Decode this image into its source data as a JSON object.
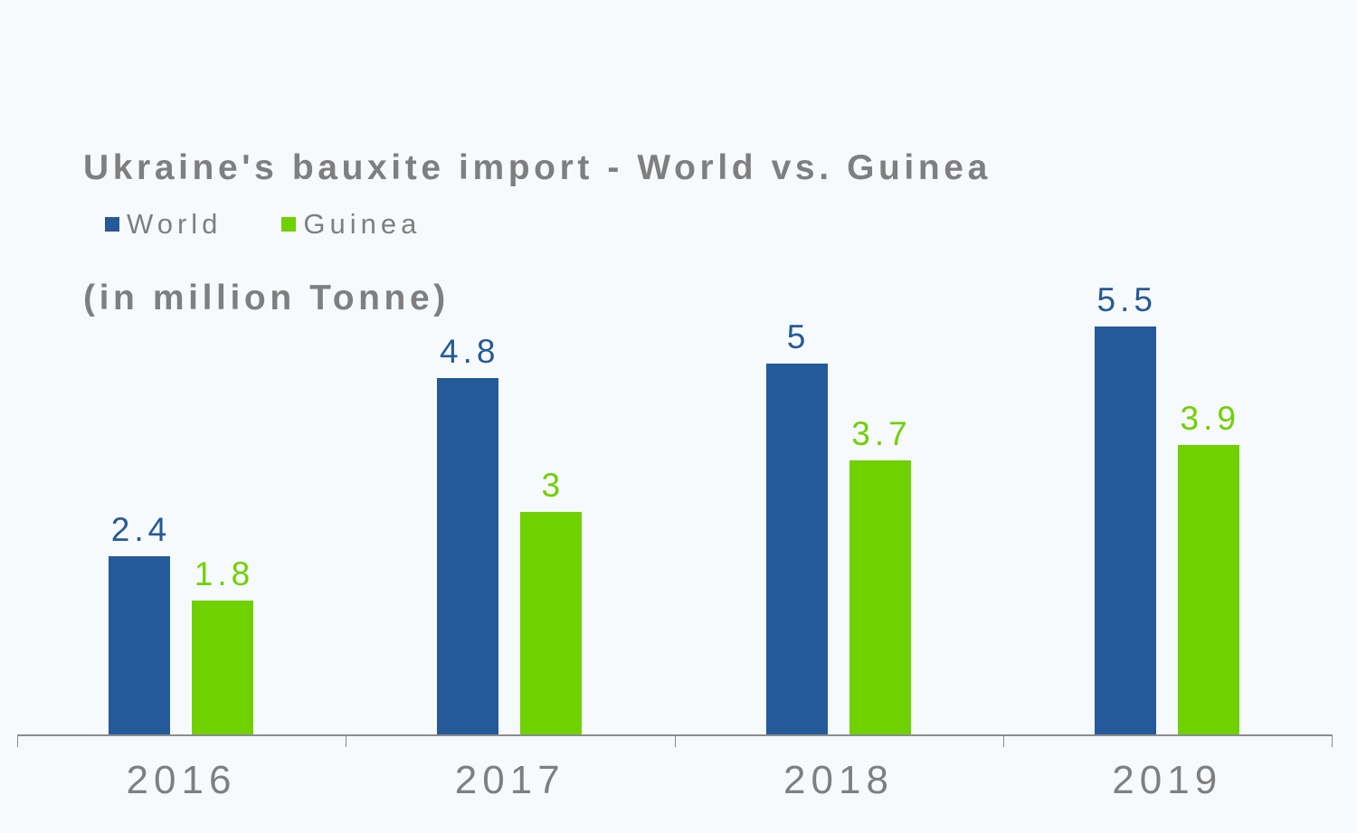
{
  "chart_data": {
    "type": "bar",
    "title": "Ukraine's bauxite import - World vs. Guinea\n(in million Tonne)",
    "title_lines": [
      "Ukraine's bauxite import - World vs. Guinea",
      "(in million Tonne)"
    ],
    "categories": [
      "2016",
      "2017",
      "2018",
      "2019"
    ],
    "series": [
      {
        "name": "World",
        "color": "#245a99",
        "values": [
          2.4,
          4.8,
          5,
          5.5
        ],
        "labels": [
          "2.4",
          "4.8",
          "5",
          "5.5"
        ]
      },
      {
        "name": "Guinea",
        "color": "#6fd100",
        "values": [
          1.8,
          3,
          3.7,
          3.9
        ],
        "labels": [
          "1.8",
          "3",
          "3.7",
          "3.9"
        ]
      }
    ],
    "xlabel": "",
    "ylabel": "",
    "ylim": [
      0,
      6
    ],
    "grid": false,
    "legend_position": "top-left",
    "data_labels": true
  }
}
